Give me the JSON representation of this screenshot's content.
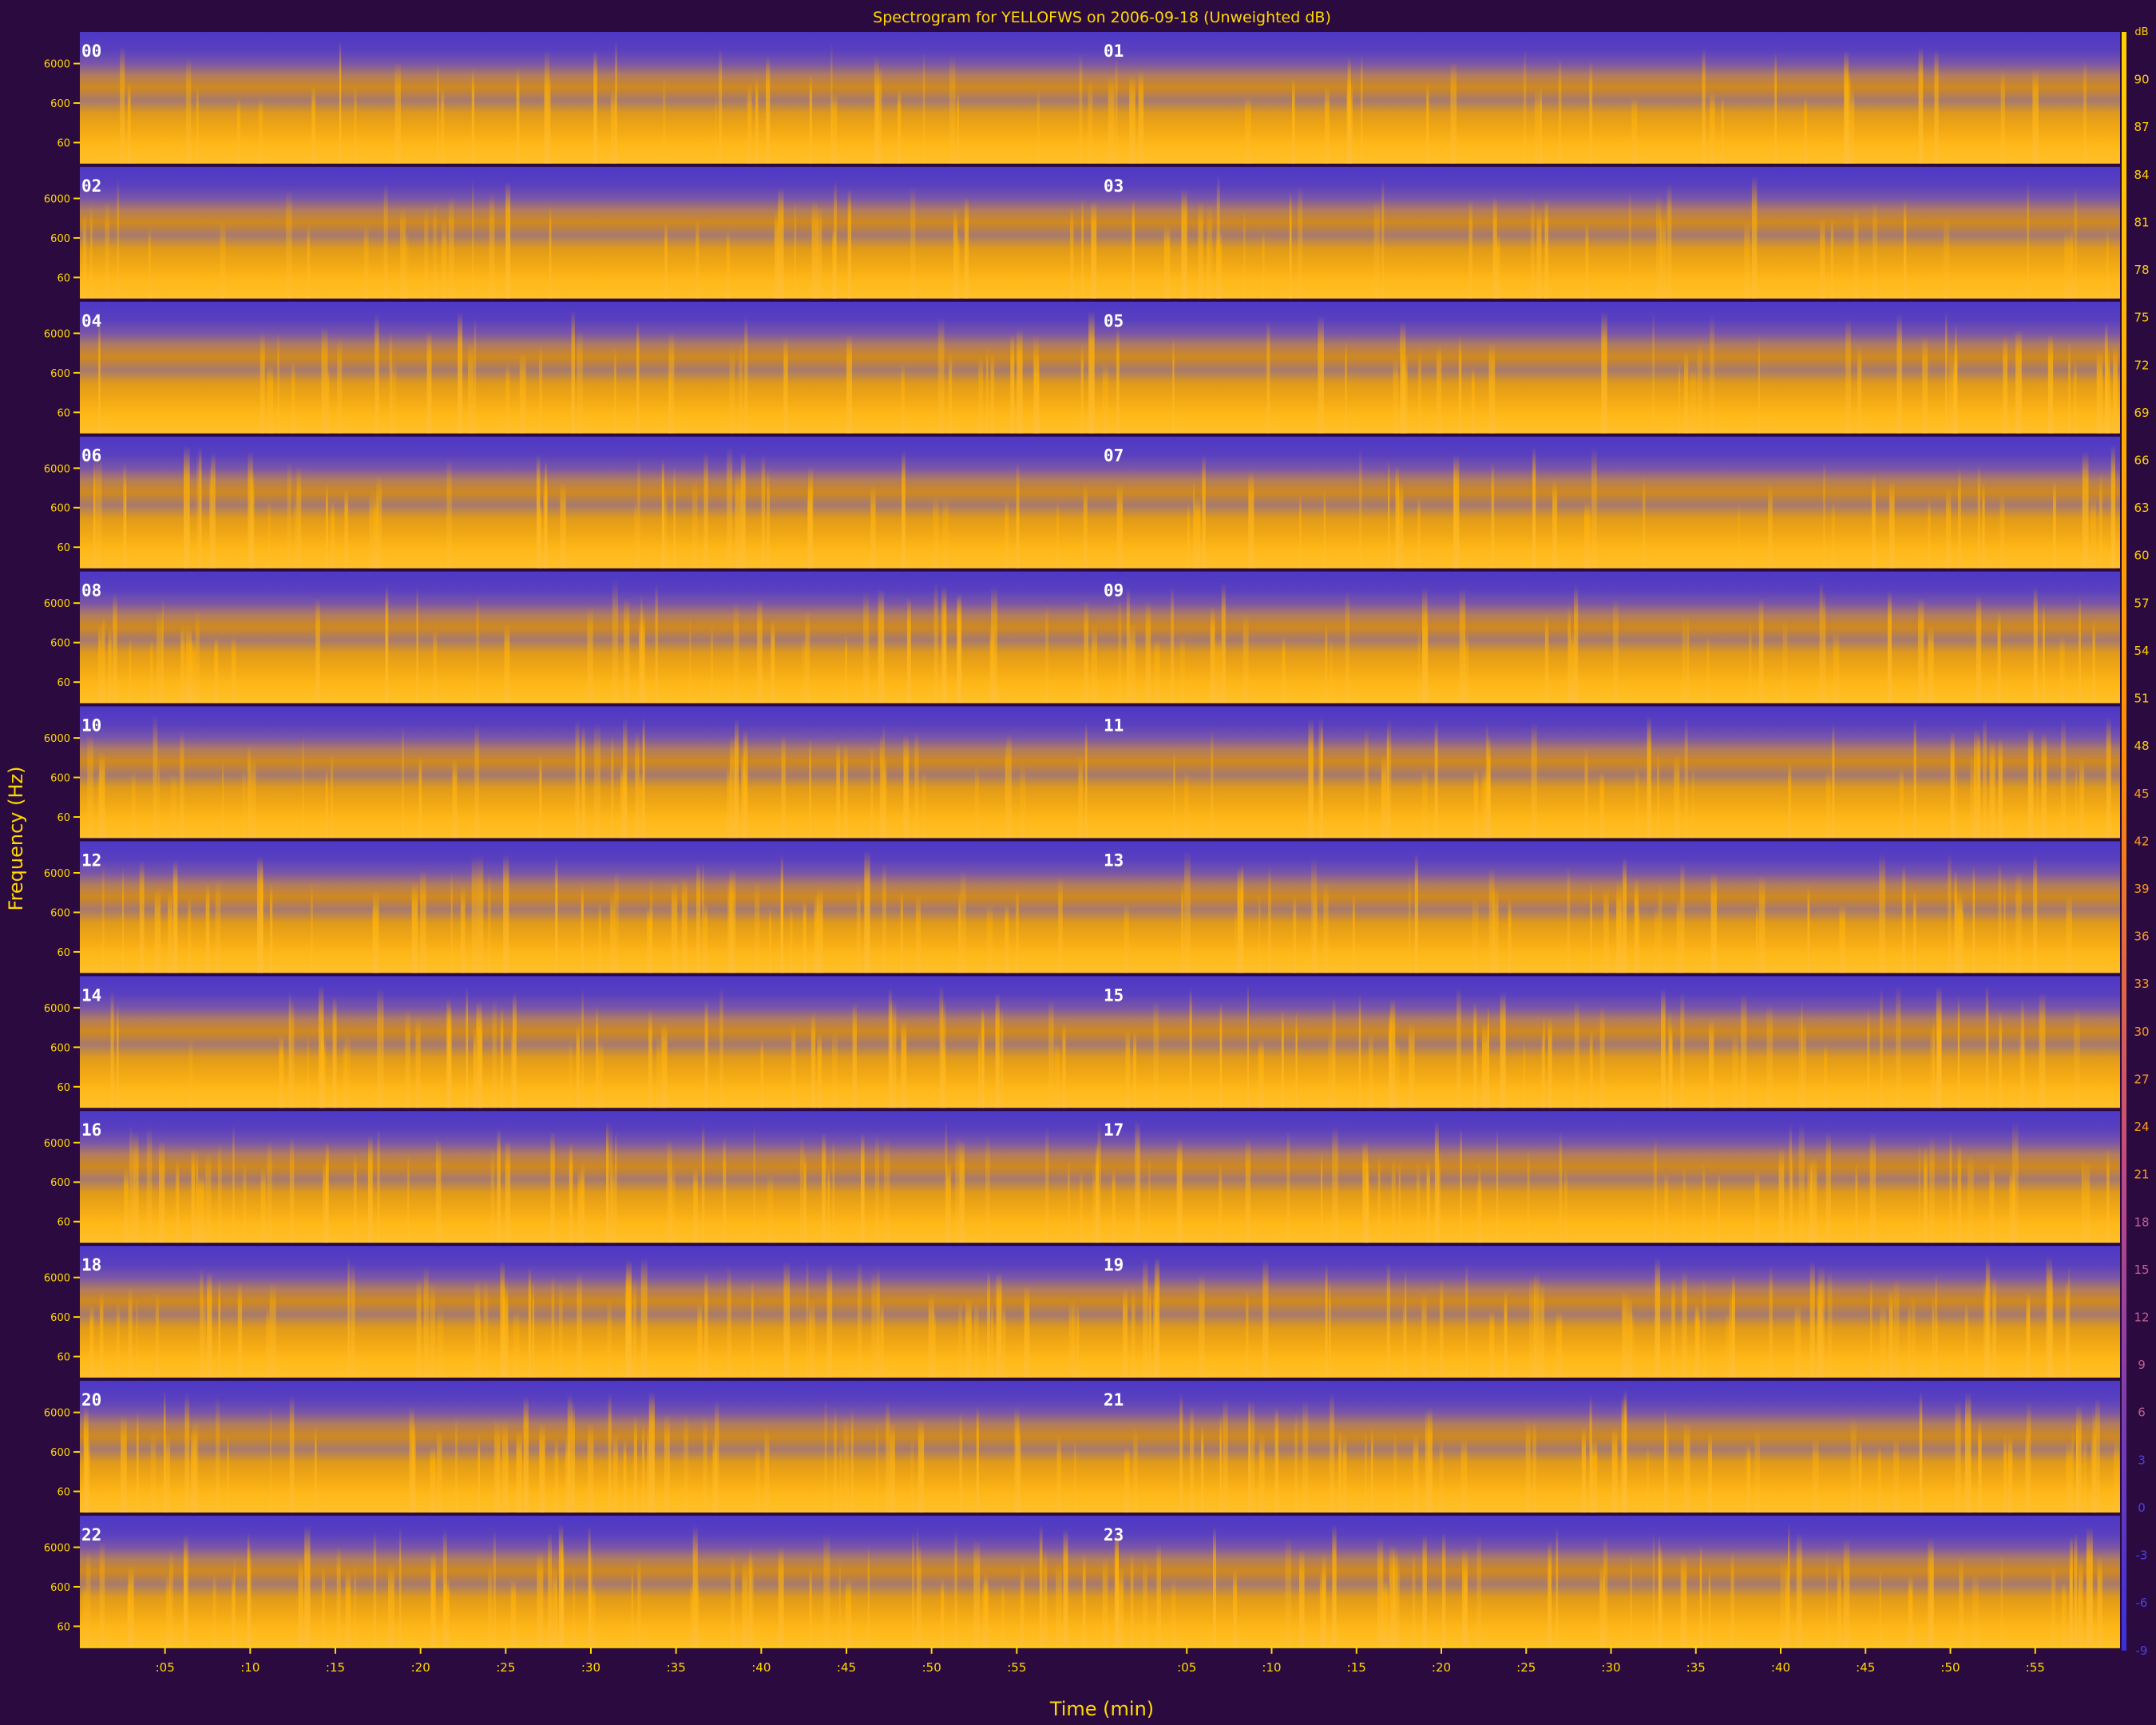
{
  "chart_data": {
    "type": "heatmap",
    "title": "Spectrogram for YELLOFWS on 2006-09-18 (Unweighted dB)",
    "xlabel": "Time (min)",
    "ylabel": "Frequency (Hz)",
    "colorbar_unit": "dB",
    "colorbar_ticks": [
      "90",
      "87",
      "84",
      "81",
      "78",
      "75",
      "72",
      "69",
      "66",
      "63",
      "60",
      "57",
      "54",
      "51",
      "48",
      "45",
      "42",
      "39",
      "36",
      "33",
      "30",
      "27",
      "24",
      "21",
      "18",
      "15",
      "12",
      "9",
      "6",
      "3",
      "0",
      "-3",
      "-6",
      "-9"
    ],
    "frequency_ticks": [
      "6000",
      "600",
      "60"
    ],
    "x_ticks": [
      ":05",
      ":10",
      ":15",
      ":20",
      ":25",
      ":30",
      ":35",
      ":40",
      ":45",
      ":50",
      ":55"
    ],
    "hour_labels": [
      "00",
      "01",
      "02",
      "03",
      "04",
      "05",
      "06",
      "07",
      "08",
      "09",
      "10",
      "11",
      "12",
      "13",
      "14",
      "15",
      "16",
      "17",
      "18",
      "19",
      "20",
      "21",
      "22",
      "23"
    ],
    "rows": 12,
    "columns": 2,
    "colormap": {
      "low": "#4b36c8",
      "mid": "#d8921c",
      "high": "#ffb000",
      "peak": "#fff3c8"
    }
  }
}
